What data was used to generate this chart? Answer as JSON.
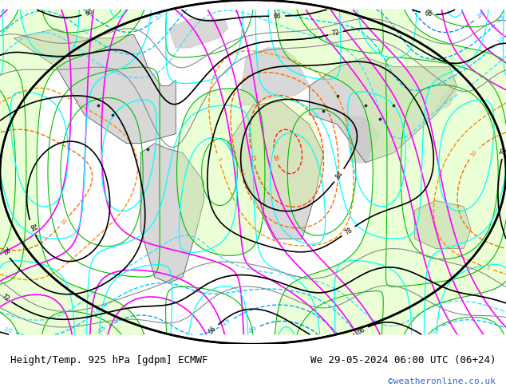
{
  "title_left": "Height/Temp. 925 hPa [gdpm] ECMWF",
  "title_right": "We 29-05-2024 06:00 UTC (06+24)",
  "copyright": "©weatheronline.co.uk",
  "bg_color": "#ffffff",
  "footer_text_color": "#000000",
  "copyright_color": "#3366cc",
  "title_fontsize": 9,
  "copyright_fontsize": 8,
  "fig_width": 6.34,
  "fig_height": 4.9,
  "dpi": 100
}
